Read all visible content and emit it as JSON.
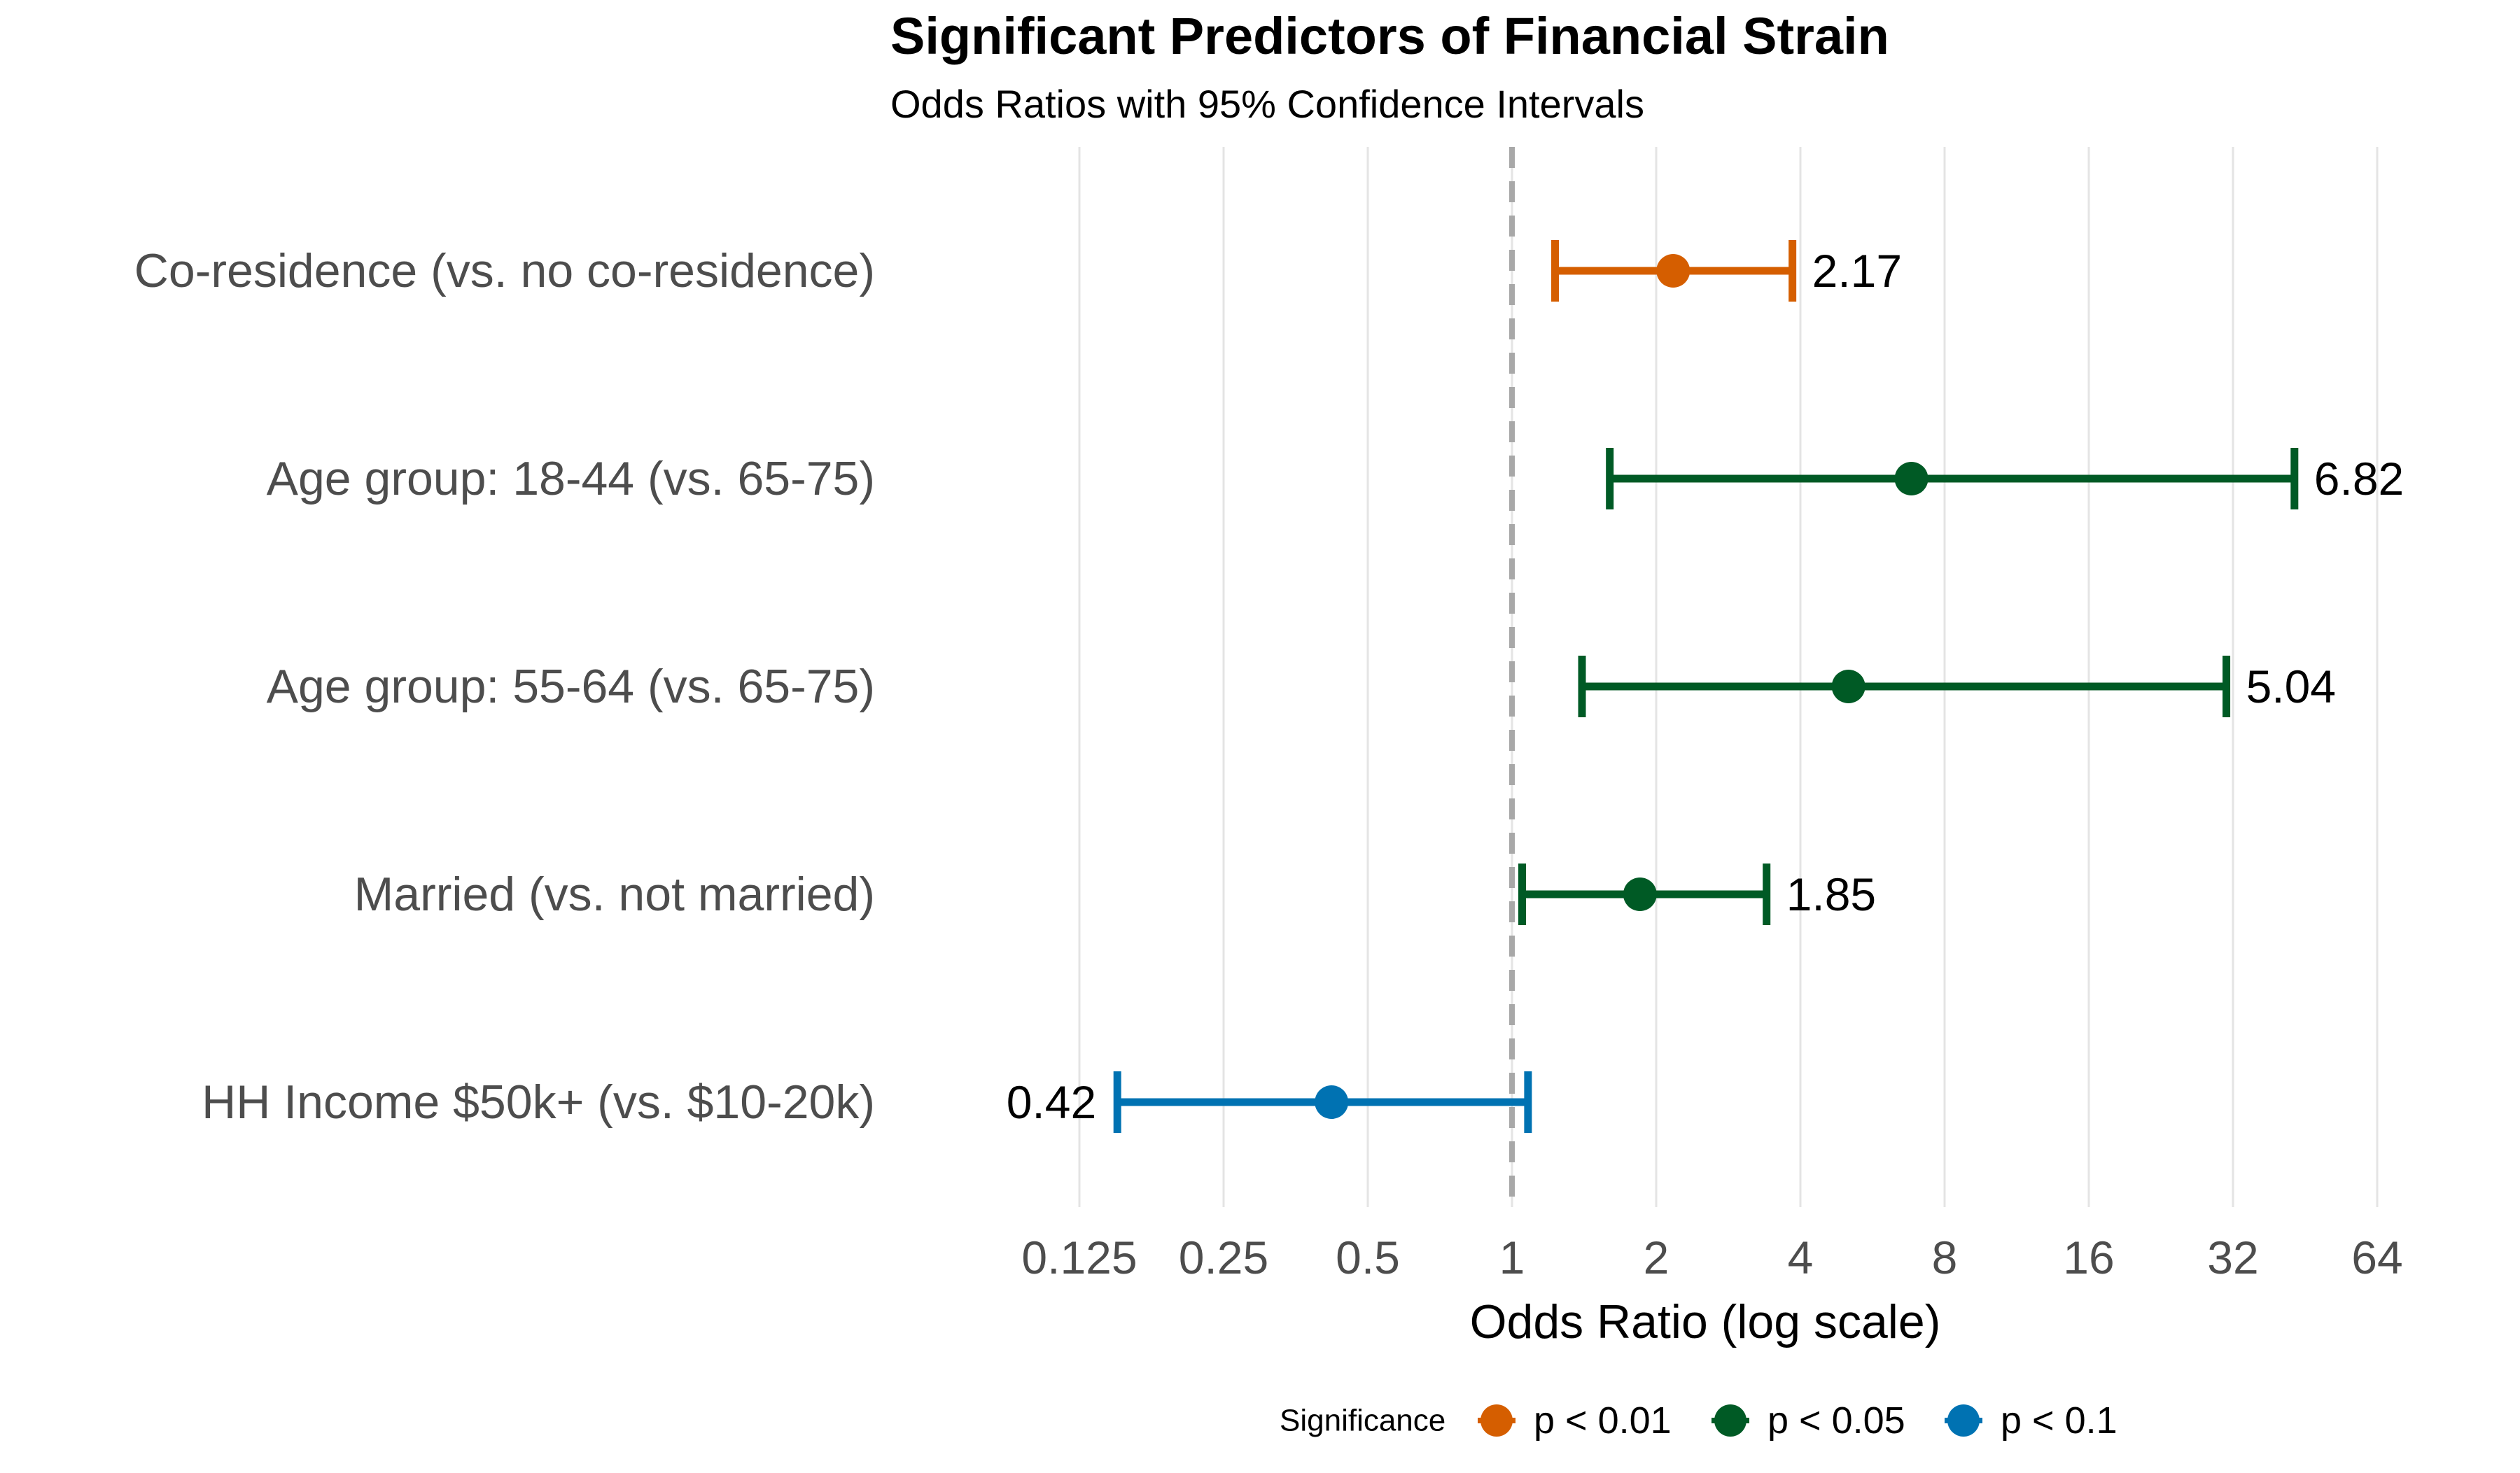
{
  "chart_data": {
    "type": "forest",
    "title": "Significant Predictors of Financial Strain",
    "subtitle": "Odds Ratios with 95% Confidence Intervals",
    "xlabel": "Odds Ratio (log scale)",
    "x_scale": "log2",
    "xlim": [
      0.11,
      75
    ],
    "x_ticks": [
      0.125,
      0.25,
      0.5,
      1,
      2,
      4,
      8,
      16,
      32,
      64
    ],
    "x_tick_labels": [
      "0.125",
      "0.25",
      "0.5",
      "1",
      "2",
      "4",
      "8",
      "16",
      "32",
      "64"
    ],
    "reference_line": 1,
    "grid": "vertical major",
    "legend_position": "bottom",
    "legend_title": "Significance",
    "significance_levels": [
      {
        "label": "p < 0.01",
        "color": "#D55E00"
      },
      {
        "label": "p < 0.05",
        "color": "#005A25"
      },
      {
        "label": "p < 0.1",
        "color": "#0072B2"
      }
    ],
    "rows": [
      {
        "label": "Co-residence (vs. no co-residence)",
        "or": 2.17,
        "lower": 1.23,
        "upper": 3.85,
        "or_label": "2.17",
        "significance": "p < 0.01",
        "label_side": "right"
      },
      {
        "label": "Age group: 18-44 (vs. 65-75)",
        "or": 6.82,
        "lower": 1.6,
        "upper": 43.0,
        "or_label": "6.82",
        "significance": "p < 0.05",
        "label_side": "right"
      },
      {
        "label": "Age group: 55-64 (vs. 65-75)",
        "or": 5.04,
        "lower": 1.4,
        "upper": 31.0,
        "or_label": "5.04",
        "significance": "p < 0.05",
        "label_side": "right"
      },
      {
        "label": "Married (vs. not married)",
        "or": 1.85,
        "lower": 1.05,
        "upper": 3.4,
        "or_label": "1.85",
        "significance": "p < 0.05",
        "label_side": "right"
      },
      {
        "label": "HH Income $50k+ (vs. $10-20k)",
        "or": 0.42,
        "lower": 0.15,
        "upper": 1.08,
        "or_label": "0.42",
        "significance": "p < 0.1",
        "label_side": "left"
      }
    ]
  }
}
